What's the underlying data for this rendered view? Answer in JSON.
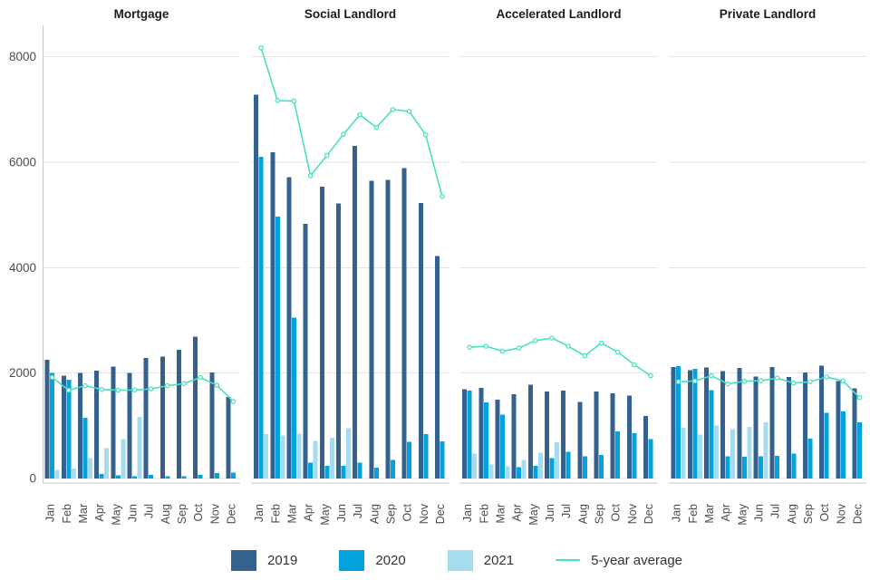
{
  "colors": {
    "y2019": "#35618F",
    "y2020": "#00A3DC",
    "y2021": "#A5DCF0",
    "avg_line": "#48E0C0",
    "grid": "#E4E4E4",
    "axis": "#C6C6C6",
    "tick_text": "#4D4D4D",
    "title_text": "#1C1C1C"
  },
  "legend": {
    "items": [
      {
        "label": "2019",
        "type": "swatch",
        "color_key": "y2019"
      },
      {
        "label": "2020",
        "type": "swatch",
        "color_key": "y2020"
      },
      {
        "label": "2021",
        "type": "swatch",
        "color_key": "y2021"
      },
      {
        "label": "5-year average",
        "type": "line",
        "color_key": "avg_line"
      }
    ]
  },
  "chart_data": {
    "type": "bar",
    "subtype": "faceted grouped bars with 5-year-average line overlay",
    "grid": true,
    "legend_position": "bottom",
    "months": [
      "Jan",
      "Feb",
      "Mar",
      "Apr",
      "May",
      "Jun",
      "Jul",
      "Aug",
      "Sep",
      "Oct",
      "Nov",
      "Dec"
    ],
    "ylim": [
      0,
      8600
    ],
    "yticks": [
      0,
      2000,
      4000,
      6000,
      8000
    ],
    "facets": [
      {
        "title": "Mortgage",
        "series": [
          {
            "name": "2019",
            "values": [
              2250,
              1950,
              2000,
              2050,
              2120,
              2000,
              2290,
              2310,
              2440,
              2690,
              2010,
              1550
            ]
          },
          {
            "name": "2020",
            "values": [
              2000,
              1870,
              1155,
              90,
              60,
              40,
              70,
              45,
              45,
              70,
              105,
              115
            ]
          },
          {
            "name": "2021",
            "values": [
              160,
              190,
              390,
              580,
              750,
              1170,
              null,
              null,
              null,
              null,
              null,
              null
            ]
          }
        ],
        "line": {
          "name": "5-year average",
          "values": [
            1920,
            1675,
            1760,
            1690,
            1675,
            1680,
            1700,
            1760,
            1800,
            1915,
            1770,
            1460
          ]
        }
      },
      {
        "title": "Social Landlord",
        "series": [
          {
            "name": "2019",
            "values": [
              7280,
              6190,
              5720,
              4830,
              5540,
              5215,
              6310,
              5650,
              5665,
              5885,
              5225,
              4225
            ]
          },
          {
            "name": "2020",
            "values": [
              6105,
              4965,
              3055,
              305,
              240,
              245,
              300,
              205,
              355,
              695,
              845,
              705
            ]
          },
          {
            "name": "2021",
            "values": [
              845,
              820,
              850,
              710,
              775,
              950,
              null,
              null,
              null,
              null,
              null,
              null
            ]
          }
        ],
        "line": {
          "name": "5-year average",
          "values": [
            8170,
            7170,
            7160,
            5745,
            6130,
            6530,
            6900,
            6660,
            7000,
            6965,
            6520,
            5350
          ]
        }
      },
      {
        "title": "Accelerated Landlord",
        "series": [
          {
            "name": "2019",
            "values": [
              1690,
              1720,
              1500,
              1600,
              1780,
              1650,
              1670,
              1450,
              1650,
              1615,
              1575,
              1190
            ]
          },
          {
            "name": "2020",
            "values": [
              1670,
              1440,
              1210,
              215,
              245,
              385,
              505,
              420,
              445,
              890,
              860,
              745
            ]
          },
          {
            "name": "2021",
            "values": [
              475,
              265,
              230,
              355,
              490,
              685,
              null,
              null,
              null,
              null,
              null,
              null
            ]
          }
        ],
        "line": {
          "name": "5-year average",
          "values": [
            2490,
            2510,
            2415,
            2475,
            2615,
            2665,
            2510,
            2330,
            2570,
            2400,
            2160,
            1950
          ]
        }
      },
      {
        "title": "Private Landlord",
        "series": [
          {
            "name": "2019",
            "values": [
              2115,
              2055,
              2110,
              2040,
              2095,
              1935,
              2115,
              1925,
              2010,
              2140,
              1850,
              1715
            ]
          },
          {
            "name": "2020",
            "values": [
              2135,
              2080,
              1680,
              425,
              415,
              425,
              430,
              470,
              755,
              1245,
              1275,
              1065
            ]
          },
          {
            "name": "2021",
            "values": [
              965,
              830,
              1005,
              935,
              980,
              1065,
              null,
              null,
              null,
              null,
              null,
              null
            ]
          }
        ],
        "line": {
          "name": "5-year average",
          "values": [
            1835,
            1850,
            1950,
            1795,
            1845,
            1855,
            1905,
            1810,
            1835,
            1925,
            1850,
            1535
          ]
        }
      }
    ]
  }
}
